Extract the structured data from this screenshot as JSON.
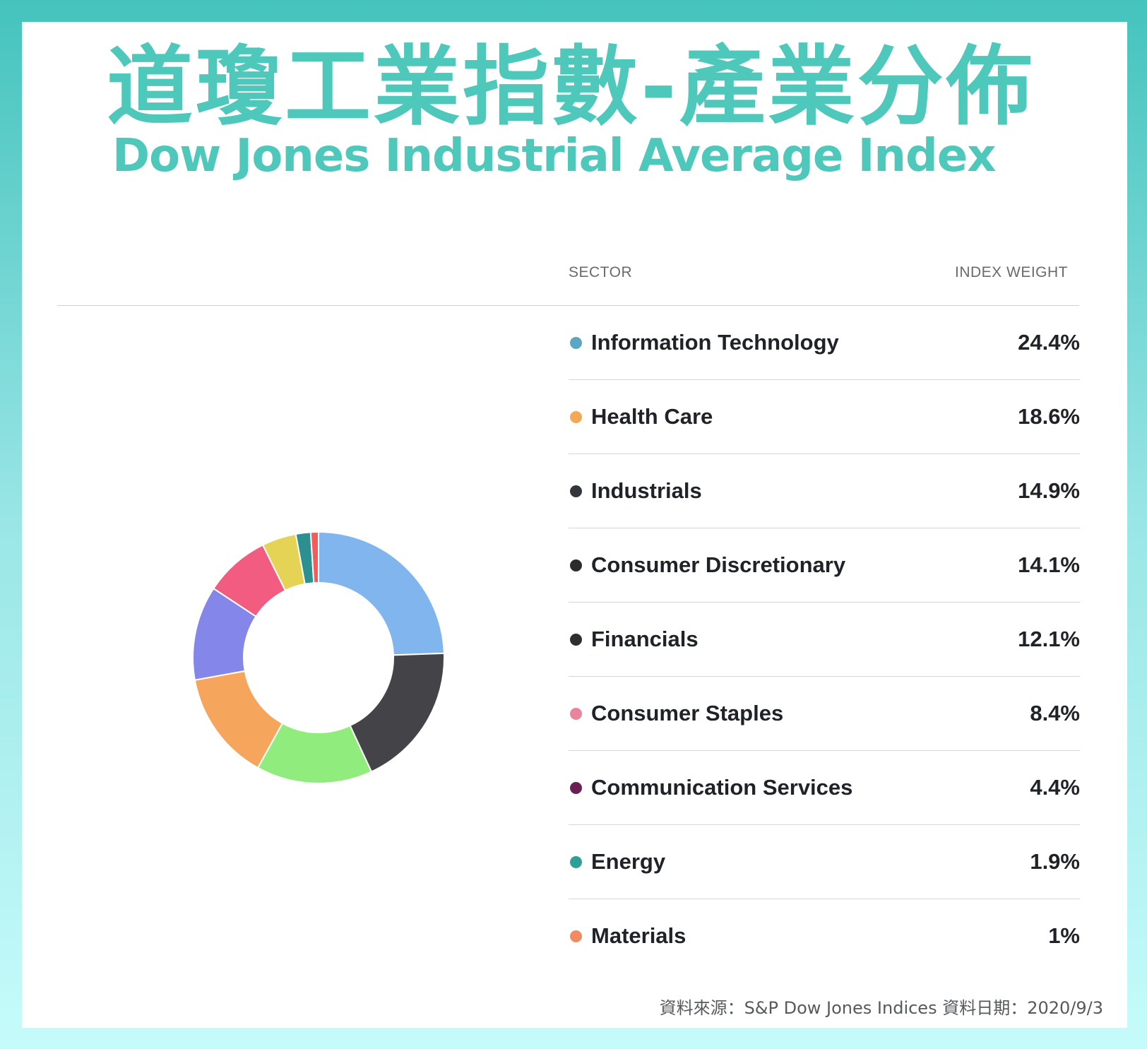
{
  "title_zh": "道瓊工業指數-產業分佈",
  "title_en": "Dow Jones Industrial Average Index",
  "table": {
    "header_sector": "SECTOR",
    "header_weight": "INDEX WEIGHT",
    "rows": [
      {
        "sector": "Information Technology",
        "weight": "24.4%",
        "dot_color": "#5ba6c2"
      },
      {
        "sector": "Health Care",
        "weight": "18.6%",
        "dot_color": "#f3a855"
      },
      {
        "sector": "Industrials",
        "weight": "14.9%",
        "dot_color": "#33373b"
      },
      {
        "sector": "Consumer Discretionary",
        "weight": "14.1%",
        "dot_color": "#2b2b2b"
      },
      {
        "sector": "Financials",
        "weight": "12.1%",
        "dot_color": "#2f2d2e"
      },
      {
        "sector": "Consumer Staples",
        "weight": "8.4%",
        "dot_color": "#e8849c"
      },
      {
        "sector": "Communication Services",
        "weight": "4.4%",
        "dot_color": "#6b1f55"
      },
      {
        "sector": "Energy",
        "weight": "1.9%",
        "dot_color": "#2f9e98"
      },
      {
        "sector": "Materials",
        "weight": "1%",
        "dot_color": "#f28a62"
      }
    ]
  },
  "source_note": "資料來源：S&P Dow Jones Indices  資料日期：2020/9/3",
  "chart_data": {
    "type": "pie",
    "donut": true,
    "values": [
      24.4,
      18.6,
      14.9,
      14.1,
      12.1,
      8.4,
      4.4,
      1.9,
      1.0
    ],
    "colors": [
      "#80b5ee",
      "#434348",
      "#90ed7d",
      "#f5a55c",
      "#8486e9",
      "#f15c80",
      "#e4d354",
      "#2b908f",
      "#f45b5b"
    ],
    "start_angle_deg": 0,
    "direction": "clockwise"
  }
}
